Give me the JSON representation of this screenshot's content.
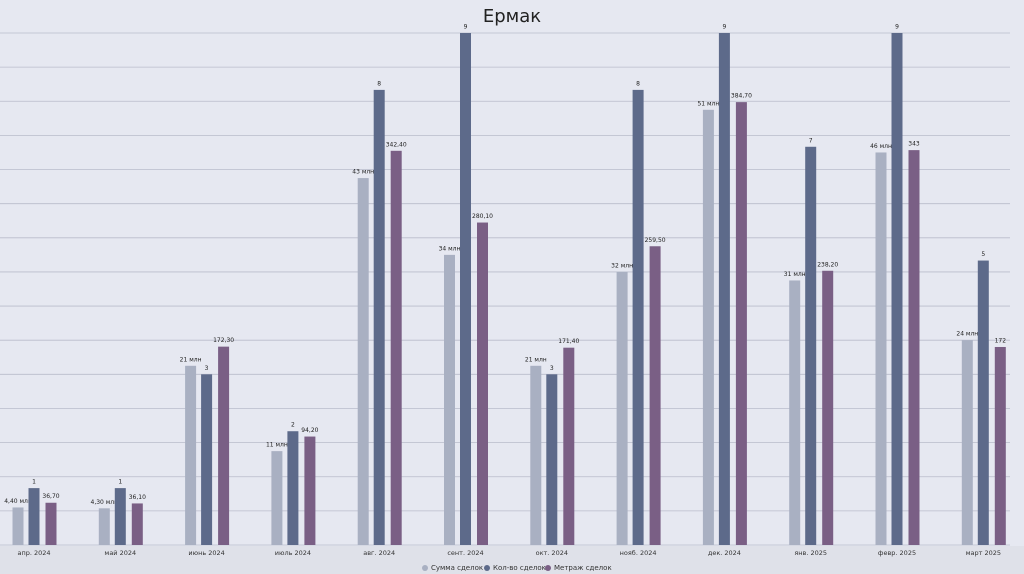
{
  "chart_data": {
    "type": "bar",
    "title": "Ермак",
    "categories": [
      "апр. 2024",
      "май 2024",
      "июнь 2024",
      "июль 2024",
      "авг. 2024",
      "сент. 2024",
      "окт. 2024",
      "нояб. 2024",
      "дек. 2024",
      "янв. 2025",
      "февр. 2025",
      "март 2025"
    ],
    "series": [
      {
        "name": "Сумма сделок",
        "color": "#a9b0c2",
        "values": [
          4.4,
          4.3,
          21,
          11,
          43,
          34,
          21,
          32,
          51,
          31,
          46,
          24
        ],
        "value_labels": [
          "4,40 млн",
          "4,30 млн",
          "21 млн",
          "11 млн",
          "43 млн",
          "34 млн",
          "21 млн",
          "32 млн",
          "51 млн",
          "31 млн",
          "46 млн",
          "24 млн"
        ]
      },
      {
        "name": "Кол-во сделок",
        "color": "#5d6a8a",
        "values": [
          1,
          1,
          3,
          2,
          8,
          9,
          3,
          8,
          9,
          7,
          9,
          5
        ]
      },
      {
        "name": "Метраж сделок",
        "color": "#7a5f85",
        "values": [
          36.7,
          36.1,
          172.3,
          94.2,
          342.4,
          280.1,
          171.4,
          259.5,
          384.7,
          238.2,
          343,
          172
        ],
        "value_labels": [
          "36,70",
          "36,10",
          "172,30",
          "94,20",
          "342,40",
          "280,10",
          "171,40",
          "259,50",
          "384,70",
          "238,20",
          "343",
          "172"
        ]
      }
    ],
    "grid": true,
    "legend": "bottom"
  }
}
